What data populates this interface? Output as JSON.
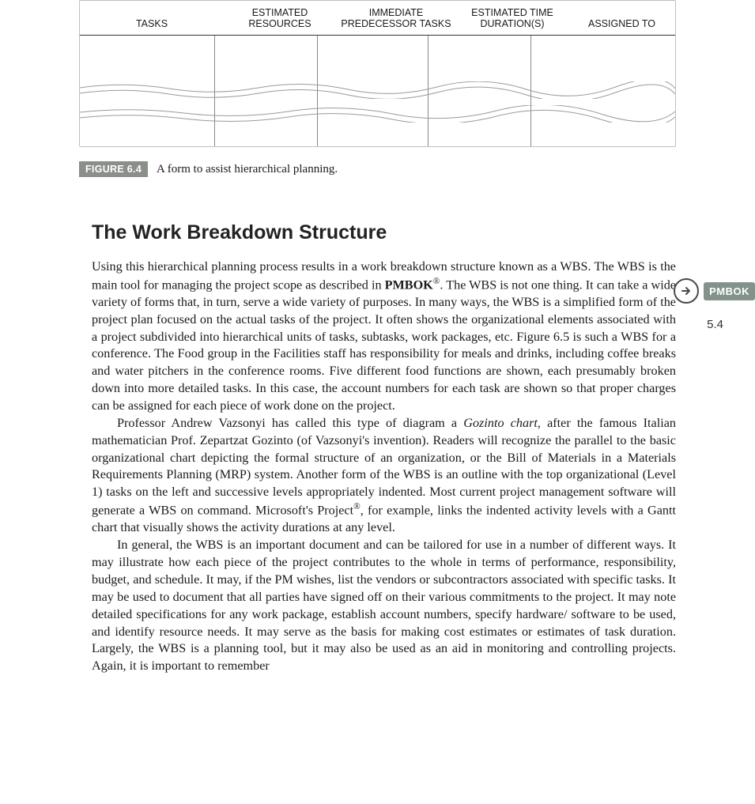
{
  "form": {
    "columns": [
      {
        "label": "TASKS",
        "width": 170
      },
      {
        "label": "ESTIMATED RESOURCES",
        "width": 130
      },
      {
        "label": "IMMEDIATE PREDECESSOR TASKS",
        "width": 140
      },
      {
        "label": "ESTIMATED TIME DURATION(S)",
        "width": 130
      },
      {
        "label": "ASSIGNED TO",
        "width": 0
      }
    ],
    "border_color": "#bfbfbf",
    "header_rule_color": "#333333",
    "col_rule_color": "#888888",
    "torn_stroke": "#9a9a9a"
  },
  "figure": {
    "badge": "FIGURE 6.4",
    "caption": "A form to assist hierarchical planning.",
    "badge_bg": "#8a8f8a",
    "badge_fg": "#ffffff"
  },
  "heading": "The Work Breakdown Structure",
  "paragraphs": [
    "Using this hierarchical planning process results in a work breakdown structure known as a WBS. The WBS is the main tool for managing the project scope as described in <span class=\"bold\">PMBOK</span><sup>®</sup>. The WBS is not one thing. It can take a wide variety of forms that, in turn, serve a wide variety of purposes. In many ways, the WBS is a simplified form of the project plan focused on the actual tasks of the project. It often shows the organizational elements associated with a project subdivided into hierarchical units of tasks, subtasks, work packages, etc. Figure 6.5 is such a WBS for a conference. The Food group in the Facilities staff has responsibility for meals and drinks, including coffee breaks and water pitchers in the conference rooms. Five different food functions are shown, each presumably broken down into more detailed tasks. In this case, the account numbers for each task are shown so that proper charges can be assigned for each piece of work done on the project.",
    "Professor Andrew Vazsonyi has called this type of diagram a <span class=\"ital\">Gozinto chart</span>, after the famous Italian mathematician Prof. Zepartzat Gozinto (of Vazsonyi's invention). Readers will recognize the parallel to the basic organizational chart depicting the formal structure of an organization, or the Bill of Materials in a Materials Requirements Planning (MRP) system. Another form of the WBS is an outline with the top organizational (Level 1) tasks on the left and successive levels appropriately indented. Most current project management software will generate a WBS on command. Microsoft's Project<sup>®</sup>, for example, links the indented activity levels with a Gantt chart that visually shows the activity durations at any level.",
    "In general, the WBS is an important document and can be tailored for use in a number of different ways. It may illustrate how each piece of the project contributes to the whole in terms of performance, responsibility, budget, and schedule. It may, if the PM wishes, list the vendors or subcontractors associated with specific tasks. It may be used to document that all parties have signed off on their various commitments to the project. It may note detailed specifications for any work package, establish account numbers, specify hardware/ software to be used, and identify resource needs. It may serve as the basis for making cost estimates or estimates of task duration. Largely, the WBS is a planning tool, but it may also be used as an aid in monitoring and controlling projects. Again, it is important to remember"
  ],
  "sidebar": {
    "badge": "PMBOK",
    "ref": "5.4",
    "badge_bg": "#83938b",
    "badge_fg": "#ffffff",
    "arrow_color": "#4a4a4a"
  },
  "page_bg": "#ffffff"
}
